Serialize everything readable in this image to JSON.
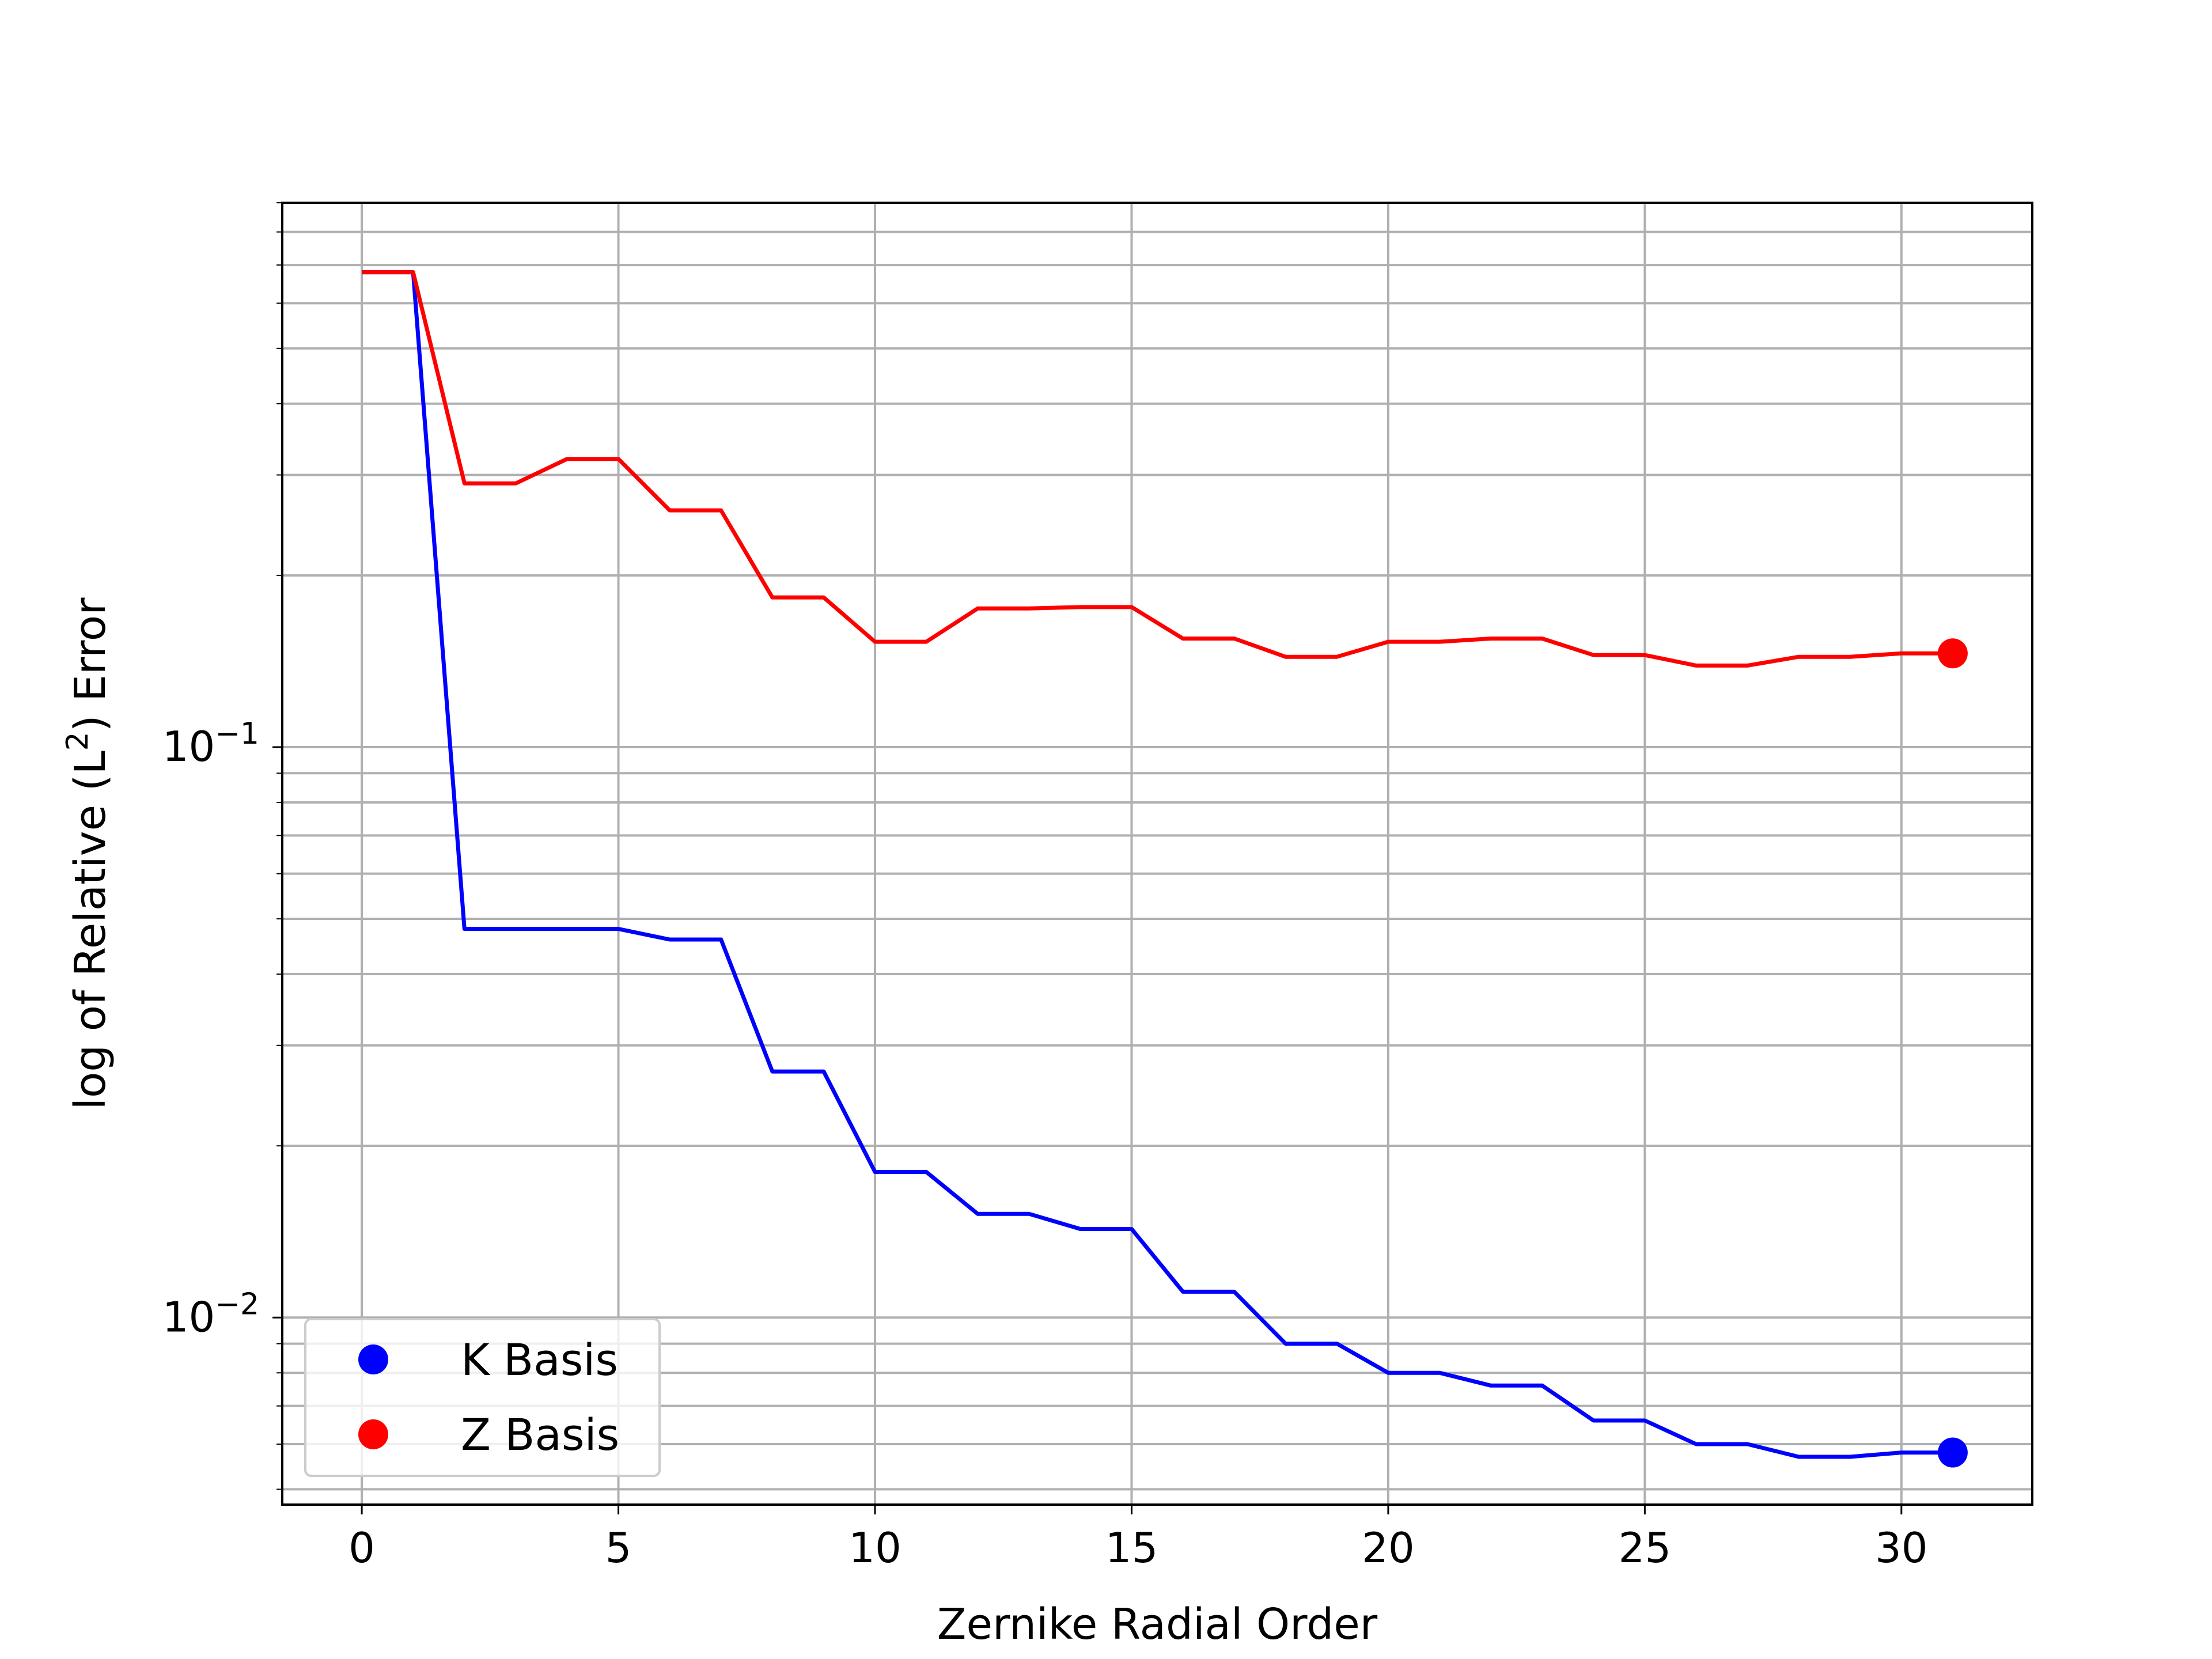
{
  "chart_data": {
    "type": "line",
    "xlabel": "Zernike Radial Order",
    "ylabel": "log of Relative (L²) Error",
    "ylabel_parts": {
      "before": "log of Relative (L",
      "sup": "2",
      "after": ") Error"
    },
    "x_ticks": [
      0,
      5,
      10,
      15,
      20,
      25,
      30
    ],
    "y_major_ticks": [
      {
        "value": 0.1,
        "base": "10",
        "exp": "−1"
      },
      {
        "value": 0.01,
        "base": "10",
        "exp": "−2"
      }
    ],
    "ylim": [
      0.0047,
      0.9
    ],
    "xlim": [
      -1.55,
      32.55
    ],
    "yscale": "log",
    "grid": true,
    "legend_position": "lower-left",
    "x": [
      0,
      1,
      2,
      3,
      4,
      5,
      6,
      7,
      8,
      9,
      10,
      11,
      12,
      13,
      14,
      15,
      16,
      17,
      18,
      19,
      20,
      21,
      22,
      23,
      24,
      25,
      26,
      27,
      28,
      29,
      30,
      31
    ],
    "series": [
      {
        "name": "K Basis",
        "color": "#0000ff",
        "values": [
          0.68,
          0.68,
          0.048,
          0.048,
          0.048,
          0.048,
          0.046,
          0.046,
          0.027,
          0.027,
          0.018,
          0.018,
          0.0152,
          0.0152,
          0.0143,
          0.0143,
          0.0111,
          0.0111,
          0.009,
          0.009,
          0.008,
          0.008,
          0.0076,
          0.0076,
          0.0066,
          0.0066,
          0.006,
          0.006,
          0.0057,
          0.0057,
          0.0058,
          0.0058
        ]
      },
      {
        "name": "Z Basis",
        "color": "#ff0000",
        "values": [
          0.68,
          0.68,
          0.29,
          0.29,
          0.32,
          0.32,
          0.26,
          0.26,
          0.183,
          0.183,
          0.153,
          0.153,
          0.175,
          0.175,
          0.176,
          0.176,
          0.155,
          0.155,
          0.144,
          0.144,
          0.153,
          0.153,
          0.155,
          0.155,
          0.145,
          0.145,
          0.139,
          0.139,
          0.144,
          0.144,
          0.146,
          0.146
        ]
      }
    ]
  }
}
